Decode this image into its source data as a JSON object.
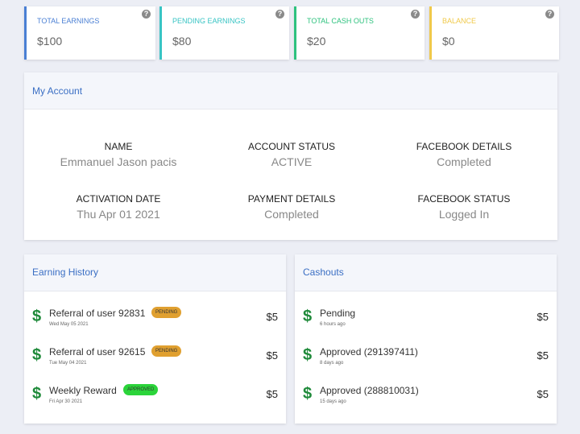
{
  "stats": [
    {
      "label": "TOTAL EARNINGS",
      "value": "$100",
      "help": "?"
    },
    {
      "label": "PENDING EARNINGS",
      "value": "$80",
      "help": "?"
    },
    {
      "label": "TOTAL CASH OUTS",
      "value": "$20",
      "help": "?"
    },
    {
      "label": "BALANCE",
      "value": "$0",
      "help": "?"
    }
  ],
  "account": {
    "title": "My Account",
    "fields": [
      {
        "label": "NAME",
        "value": "Emmanuel Jason pacis"
      },
      {
        "label": "ACCOUNT STATUS",
        "value": "ACTIVE"
      },
      {
        "label": "FACEBOOK DETAILS",
        "value": "Completed"
      },
      {
        "label": "ACTIVATION DATE",
        "value": "Thu Apr 01 2021"
      },
      {
        "label": "PAYMENT DETAILS",
        "value": "Completed"
      },
      {
        "label": "FACEBOOK STATUS",
        "value": "Logged In"
      }
    ]
  },
  "earnings": {
    "title": "Earning History",
    "items": [
      {
        "icon": "$",
        "title": "Referral of user 92831",
        "badge": "PENDING",
        "date": "Wed May 05 2021",
        "amount": "$5"
      },
      {
        "icon": "$",
        "title": "Referral of user 92615",
        "badge": "PENDING",
        "date": "Tue May 04 2021",
        "amount": "$5"
      },
      {
        "icon": "$",
        "title": "Weekly Reward",
        "badge": "APPROVED",
        "date": "Fri Apr 30 2021",
        "amount": "$5"
      }
    ]
  },
  "cashouts": {
    "title": "Cashouts",
    "items": [
      {
        "icon": "$",
        "title": "Pending",
        "time": "6 hours ago",
        "amount": "$5"
      },
      {
        "icon": "$",
        "title": "Approved (291397411)",
        "time": "8 days ago",
        "amount": "$5"
      },
      {
        "icon": "$",
        "title": "Approved (288810031)",
        "time": "15 days ago",
        "amount": "$5"
      }
    ]
  }
}
